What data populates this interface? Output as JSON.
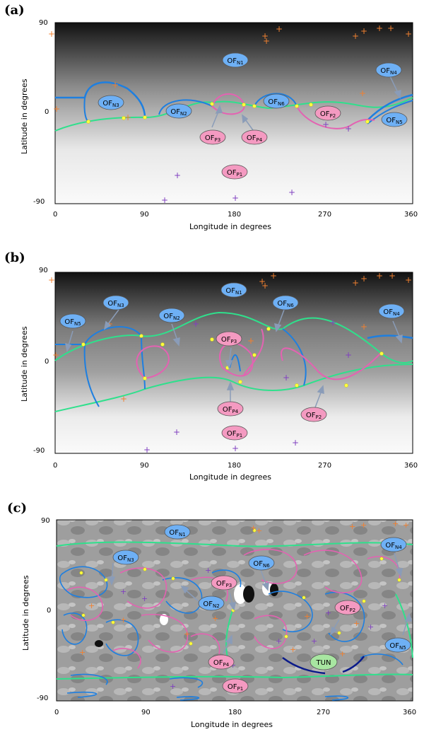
{
  "colors": {
    "negative_flux": "#6eb0f5",
    "positive_flux": "#f49ac1",
    "tunnel": "#a8e6a1",
    "neutral_line": "#2fe08c",
    "open_neg_line": "#1e7fe0",
    "open_pos_line": "#e462b2",
    "null_marker": "#ffff40",
    "orange_plus": "#f08030",
    "purple_plus": "#8040c0"
  },
  "panels": [
    {
      "label": "(a)",
      "x_axis_label": "Longitude in degrees",
      "y_axis_label": "Latitude in degrees",
      "x_ticks": [
        "0",
        "90",
        "180",
        "270",
        "360"
      ],
      "y_ticks": [
        "90",
        "0",
        "-90"
      ],
      "regions": {
        "ofn1": {
          "text": "OF",
          "sub": "N1"
        },
        "ofn3": {
          "text": "OF",
          "sub": "N3"
        },
        "ofn2": {
          "text": "OF",
          "sub": "N2"
        },
        "ofn6": {
          "text": "OF",
          "sub": "N6"
        },
        "ofn4": {
          "text": "OF",
          "sub": "N4"
        },
        "ofn5": {
          "text": "OF",
          "sub": "N5"
        },
        "ofp2": {
          "text": "OF",
          "sub": "P2"
        },
        "ofp3": {
          "text": "OF",
          "sub": "P3"
        },
        "ofp4": {
          "text": "OF",
          "sub": "P4"
        },
        "ofp1": {
          "text": "OF",
          "sub": "P1"
        }
      }
    },
    {
      "label": "(b)",
      "x_axis_label": "Longitude in degrees",
      "y_axis_label": "Latitude in degrees",
      "x_ticks": [
        "0",
        "90",
        "180",
        "270",
        "360"
      ],
      "y_ticks": [
        "90",
        "0",
        "-90"
      ],
      "regions": {
        "ofn1": {
          "text": "OF",
          "sub": "N1"
        },
        "ofn3": {
          "text": "OF",
          "sub": "N3"
        },
        "ofn5": {
          "text": "OF",
          "sub": "N5"
        },
        "ofn2": {
          "text": "OF",
          "sub": "N2"
        },
        "ofn6": {
          "text": "OF",
          "sub": "N6"
        },
        "ofn4": {
          "text": "OF",
          "sub": "N4"
        },
        "ofp3": {
          "text": "OF",
          "sub": "P3"
        },
        "ofp4": {
          "text": "OF",
          "sub": "P4"
        },
        "ofp2": {
          "text": "OF",
          "sub": "P2"
        },
        "ofp1": {
          "text": "OF",
          "sub": "P1"
        }
      }
    },
    {
      "label": "(c)",
      "x_axis_label": "Longitude in degrees",
      "y_axis_label": "Latitude in degrees",
      "x_ticks": [
        "0",
        "90",
        "180",
        "270",
        "360"
      ],
      "y_ticks": [
        "90",
        "0",
        "-90"
      ],
      "regions": {
        "ofn1": {
          "text": "OF",
          "sub": "N1"
        },
        "ofn3": {
          "text": "OF",
          "sub": "N3"
        },
        "ofn4": {
          "text": "OF",
          "sub": "N4"
        },
        "ofn6": {
          "text": "OF",
          "sub": "N6"
        },
        "ofp3": {
          "text": "OF",
          "sub": "P3"
        },
        "ofn2": {
          "text": "OF",
          "sub": "N2"
        },
        "ofp2": {
          "text": "OF",
          "sub": "P2"
        },
        "ofn5": {
          "text": "OF",
          "sub": "N5"
        },
        "ofp4": {
          "text": "OF",
          "sub": "P4"
        },
        "tun": {
          "text": "TUN",
          "sub": ""
        },
        "ofp1": {
          "text": "OF",
          "sub": "P1"
        }
      }
    }
  ]
}
